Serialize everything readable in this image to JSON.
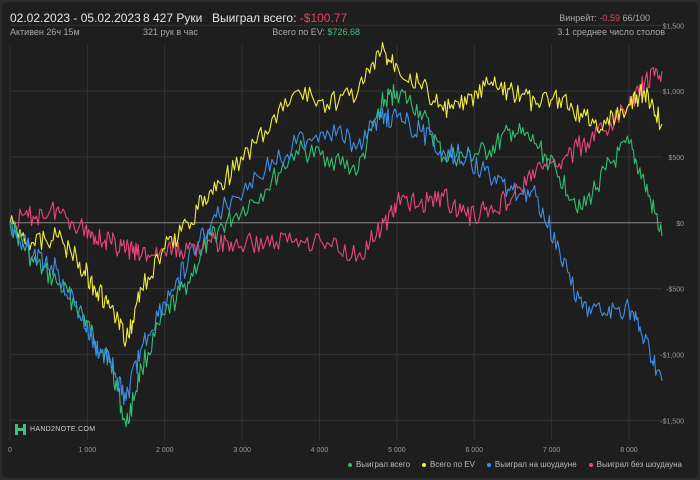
{
  "header": {
    "date_range": "02.02.2023 - 05.02.2023",
    "active": "Активен 26ч 15м",
    "hands": "8 427 Руки",
    "hands_per_hour": "321 рук в час",
    "won_label": "Выиграл всего:",
    "won_value": "-$100.77",
    "ev_label": "Всего по EV:",
    "ev_value": "$726.68",
    "winrate_label": "Винрейт:",
    "winrate_value": "-0.59",
    "winrate_rest": "66/100",
    "avg_tables": "3.1 среднее число столов"
  },
  "logo_text": "HAND2NOTE.COM",
  "colors": {
    "won": "#2fbf71",
    "ev": "#f0ee3a",
    "showdown": "#3d8fe6",
    "nonshowdown": "#e8467a",
    "background": "#1e1e1e",
    "grid": "#333333"
  },
  "chart_data": {
    "type": "line",
    "xlim": [
      0,
      8427
    ],
    "ylim": [
      -1650,
      1350
    ],
    "x_ticks": [
      0,
      1000,
      2000,
      3000,
      4000,
      5000,
      6000,
      7000,
      8000
    ],
    "x_tick_labels": [
      "0",
      "1 000",
      "2 000",
      "3 000",
      "4 000",
      "5 000",
      "6 000",
      "7 000",
      "8 000"
    ],
    "y_ticks": [
      1500,
      1000,
      500,
      0,
      -500,
      -1000,
      -1500
    ],
    "y_tick_labels": [
      "$1,500",
      "$1,000",
      "$500",
      "$0",
      "-$500",
      "-$1,000",
      "-$1,500"
    ],
    "x": [
      0,
      300,
      600,
      900,
      1100,
      1300,
      1500,
      1700,
      2000,
      2300,
      2600,
      2900,
      3300,
      3700,
      4100,
      4500,
      4800,
      5000,
      5300,
      5600,
      5900,
      6200,
      6500,
      6800,
      7100,
      7400,
      7700,
      8000,
      8200,
      8427
    ],
    "series": [
      {
        "name": "Выиграл всего",
        "color_key": "won",
        "values": [
          0,
          -300,
          -450,
          -650,
          -900,
          -1050,
          -1550,
          -1100,
          -700,
          -450,
          -100,
          50,
          250,
          550,
          500,
          400,
          900,
          1000,
          850,
          500,
          500,
          550,
          700,
          600,
          350,
          100,
          400,
          600,
          300,
          -100
        ]
      },
      {
        "name": "Всего по EV",
        "color_key": "ev",
        "values": [
          0,
          -150,
          -100,
          -300,
          -500,
          -650,
          -900,
          -500,
          -200,
          0,
          250,
          400,
          700,
          1000,
          900,
          1000,
          1300,
          1200,
          1050,
          850,
          900,
          1050,
          1000,
          900,
          950,
          800,
          750,
          900,
          1000,
          750
        ]
      },
      {
        "name": "Выиграл на шоудауне",
        "color_key": "showdown",
        "values": [
          0,
          -250,
          -350,
          -700,
          -950,
          -1050,
          -1350,
          -950,
          -600,
          -300,
          0,
          200,
          400,
          600,
          700,
          600,
          800,
          800,
          700,
          550,
          500,
          350,
          250,
          200,
          -200,
          -650,
          -700,
          -650,
          -900,
          -1200
        ]
      },
      {
        "name": "Выиграл без шоудауна",
        "color_key": "nonshowdown",
        "values": [
          0,
          50,
          100,
          -20,
          -100,
          -150,
          -200,
          -250,
          -220,
          -200,
          -150,
          -170,
          -150,
          -120,
          -150,
          -250,
          -50,
          150,
          150,
          200,
          50,
          100,
          200,
          400,
          450,
          600,
          700,
          900,
          1050,
          1150
        ]
      }
    ]
  }
}
